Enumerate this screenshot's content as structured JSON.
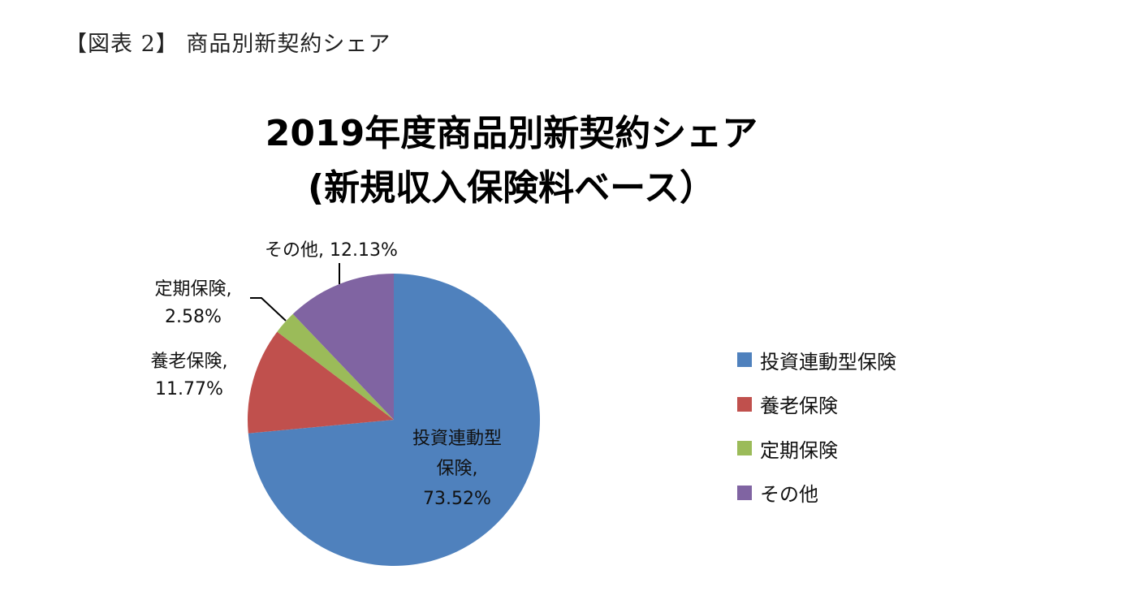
{
  "caption": "【図表 2】 商品別新契約シェア",
  "chart_data": {
    "type": "pie",
    "title": "2019年度商品別新契約シェア",
    "subtitle": "(新規収入保険料ベース）",
    "start_angle": "12 o'clock, clockwise",
    "categories": [
      "投資連動型保険",
      "養老保険",
      "定期保険",
      "その他"
    ],
    "values": [
      73.52,
      11.77,
      2.58,
      12.13
    ],
    "unit": "%",
    "colors": [
      "#4F81BD",
      "#C0504D",
      "#9BBB59",
      "#8064A2"
    ],
    "data_labels": [
      {
        "category": "投資連動型保険",
        "line1": "投資連動型",
        "line2": "保険,",
        "line3": "73.52%"
      },
      {
        "category": "養老保険",
        "line1": "養老保険,",
        "line2": "11.77%"
      },
      {
        "category": "定期保険",
        "line1": "定期保険,",
        "line2": "2.58%"
      },
      {
        "category": "その他",
        "line1": "その他, 12.13%"
      }
    ],
    "legend_position": "right"
  },
  "legend": {
    "items": [
      {
        "label": "投資連動型保険",
        "color": "#4F81BD"
      },
      {
        "label": "養老保険",
        "color": "#C0504D"
      },
      {
        "label": "定期保険",
        "color": "#9BBB59"
      },
      {
        "label": "その他",
        "color": "#8064A2"
      }
    ]
  }
}
